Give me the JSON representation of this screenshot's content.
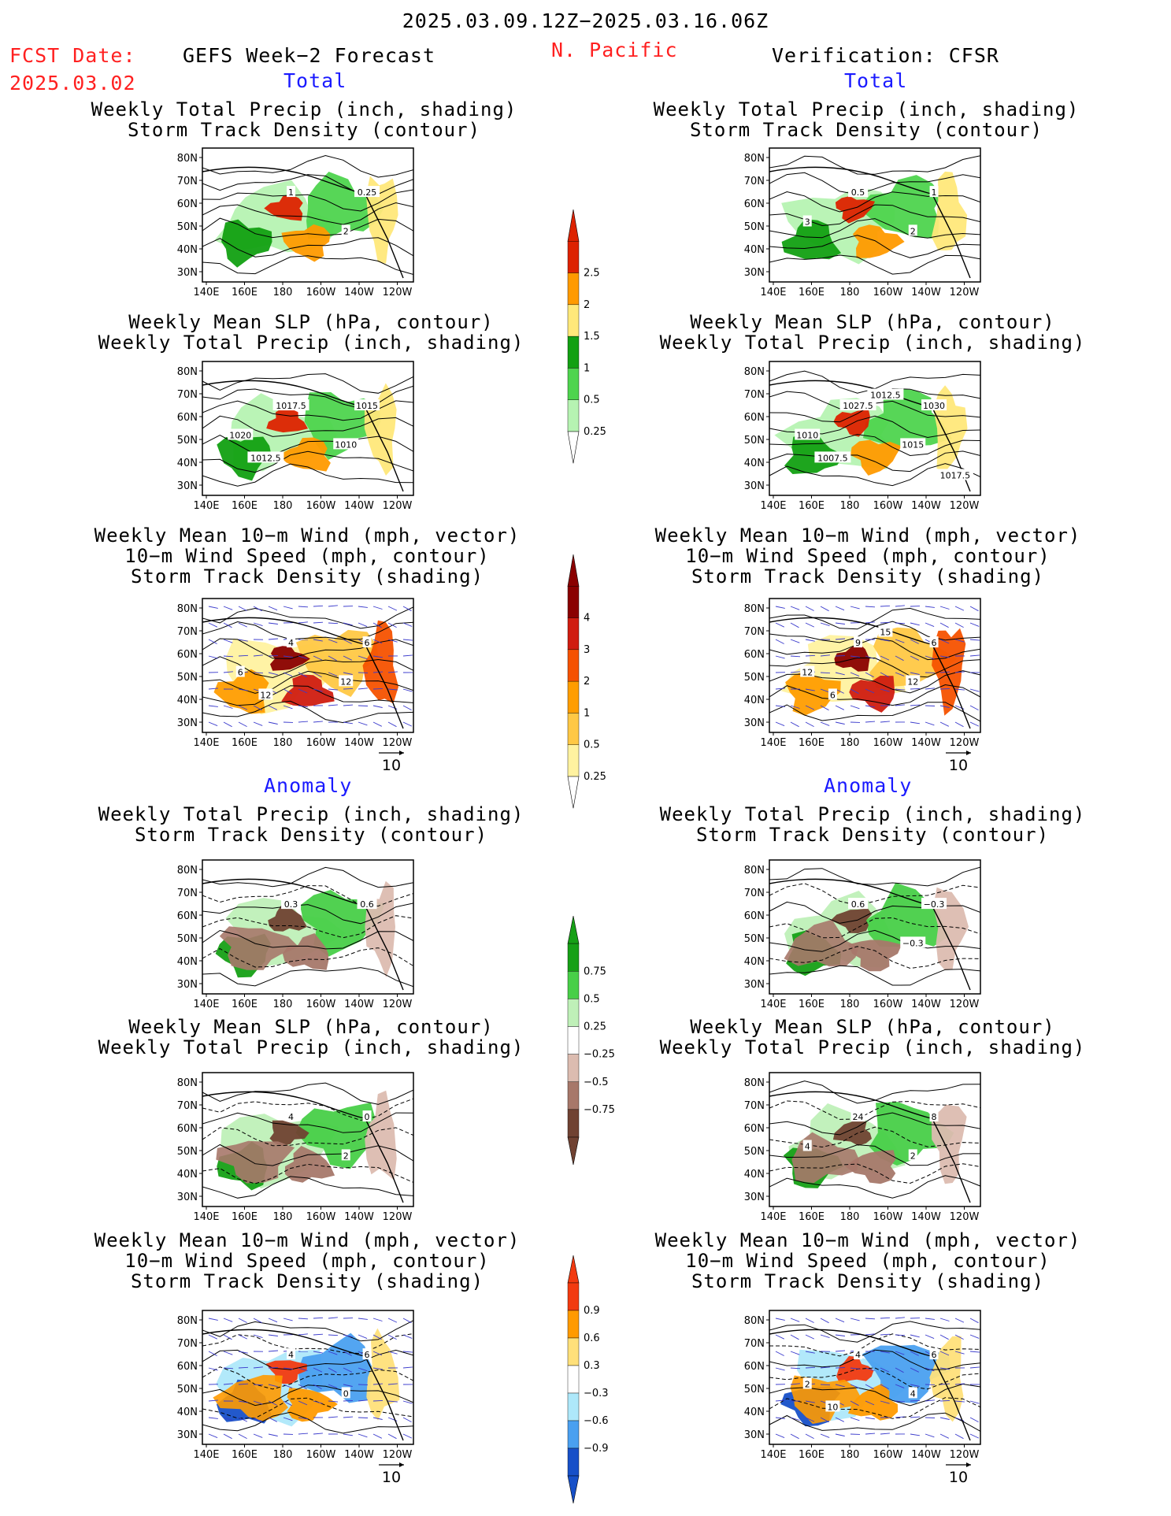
{
  "header": {
    "date_range": "2025.03.09.12Z−2025.03.16.06Z",
    "fcst_label": "FCST Date:",
    "fcst_date": "2025.03.02",
    "left_title": "GEFS Week−2 Forecast",
    "region": "N. Pacific",
    "right_title": "Verification: CFSR"
  },
  "sections": {
    "total": "Total",
    "anomaly": "Anomaly"
  },
  "panel_titles": {
    "precip_storm": [
      "Weekly Total Precip (inch, shading)",
      "Storm Track Density (contour)"
    ],
    "slp_precip": [
      "Weekly Mean SLP (hPa, contour)",
      "Weekly Total Precip (inch, shading)"
    ],
    "wind_storm": [
      "Weekly Mean 10−m Wind (mph, vector)",
      "10−m Wind Speed (mph, contour)",
      "Storm Track Density (shading)"
    ]
  },
  "axes": {
    "lat_ticks": [
      "80N",
      "70N",
      "60N",
      "50N",
      "40N",
      "30N"
    ],
    "lon_ticks": [
      "140E",
      "160E",
      "180",
      "160W",
      "140W",
      "120W"
    ],
    "vector_ref": "10"
  },
  "colorbars": {
    "precip_total": {
      "labels": [
        "2.5",
        "2",
        "1.5",
        "1",
        "0.5",
        "0.25"
      ],
      "colors": [
        "#dd2200",
        "#ff9a00",
        "#ffe87a",
        "#12a012",
        "#4ed44e",
        "#b6f3b2"
      ]
    },
    "storm_total": {
      "labels": [
        "4",
        "3",
        "2",
        "1",
        "0.5",
        "0.25"
      ],
      "colors": [
        "#8a0000",
        "#d01c10",
        "#f55200",
        "#ff9d00",
        "#ffc845",
        "#fff2a0"
      ]
    },
    "precip_anom": {
      "labels": [
        "0.75",
        "0.5",
        "0.25",
        "−0.25",
        "−0.5",
        "−0.75"
      ],
      "colors": [
        "#16a016",
        "#48cf48",
        "#bff0b8",
        "#ffffff",
        "#dcbcb0",
        "#a7786a",
        "#704232"
      ]
    },
    "storm_anom": {
      "labels": [
        "0.9",
        "0.6",
        "0.3",
        "−0.3",
        "−0.6",
        "−0.9"
      ],
      "colors": [
        "#f23a10",
        "#ff9a00",
        "#ffe07a",
        "#ffffff",
        "#aee8fa",
        "#4aa0f0",
        "#1750c8"
      ]
    }
  },
  "panels": [
    {
      "id": "fc-total-precip",
      "contour_labels": [
        "1",
        "0.25",
        "2"
      ],
      "colors": "#4ed44e",
      "style": "tp"
    },
    {
      "id": "fc-total-slp",
      "contour_labels": [
        "1017.5",
        "1015",
        "1010",
        "1020",
        "1012.5"
      ],
      "style": "tp"
    },
    {
      "id": "fc-total-wind",
      "contour_labels": [
        "4",
        "6",
        "12",
        "6",
        "12"
      ],
      "style": "ts"
    },
    {
      "id": "vf-total-precip",
      "contour_labels": [
        "0.5",
        "1",
        "2",
        "3"
      ],
      "style": "tp"
    },
    {
      "id": "vf-total-slp",
      "contour_labels": [
        "1027.5",
        "1030",
        "1015",
        "1010",
        "1007.5",
        "1012.5",
        "1017.5"
      ],
      "style": "tp"
    },
    {
      "id": "vf-total-wind",
      "contour_labels": [
        "9",
        "6",
        "12",
        "12",
        "6",
        "15"
      ],
      "style": "ts"
    },
    {
      "id": "fc-anom-precip",
      "contour_labels": [
        "0.3",
        "0.6"
      ],
      "style": "ap"
    },
    {
      "id": "fc-anom-slp",
      "contour_labels": [
        "4",
        "0",
        "2"
      ],
      "style": "ap"
    },
    {
      "id": "fc-anom-wind",
      "contour_labels": [
        "4",
        "6",
        "0"
      ],
      "style": "as"
    },
    {
      "id": "vf-anom-precip",
      "contour_labels": [
        "0.6",
        "−0.3",
        "−0.3"
      ],
      "style": "ap"
    },
    {
      "id": "vf-anom-slp",
      "contour_labels": [
        "24",
        "8",
        "2",
        "4"
      ],
      "style": "ap"
    },
    {
      "id": "vf-anom-wind",
      "contour_labels": [
        "4",
        "6",
        "4",
        "2",
        "10"
      ],
      "style": "as"
    }
  ]
}
